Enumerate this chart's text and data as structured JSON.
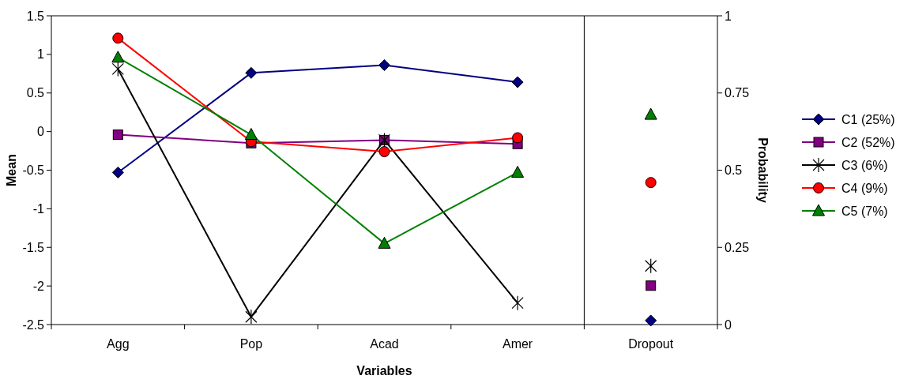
{
  "chart_data": {
    "type": "line",
    "xlabel": "Variables",
    "ylabel": "Mean",
    "y2label": "Probability",
    "categories": [
      "Agg",
      "Pop",
      "Acad",
      "Amer",
      "Dropout"
    ],
    "ylim": [
      -2.5,
      1.5
    ],
    "yticks": [
      -2.5,
      -2,
      -1.5,
      -1,
      -0.5,
      0,
      0.5,
      1,
      1.5
    ],
    "y2lim": [
      0,
      1
    ],
    "y2ticks": [
      0,
      0.25,
      0.5,
      0.75,
      1
    ],
    "legend": "right",
    "grid": false,
    "series": [
      {
        "name": "C1 (25%)",
        "color": "#000080",
        "marker": "diamond",
        "values": [
          -0.53,
          0.76,
          0.86,
          0.64,
          null
        ]
      },
      {
        "name": "C2 (52%)",
        "color": "#800080",
        "marker": "square",
        "values": [
          -0.04,
          -0.15,
          -0.11,
          -0.16,
          null
        ]
      },
      {
        "name": "C3 (6%)",
        "color": "#000000",
        "marker": "cross",
        "values": [
          0.81,
          -2.4,
          -0.11,
          -2.22,
          null
        ]
      },
      {
        "name": "C4 (9%)",
        "color": "#ff0000",
        "marker": "circle",
        "values": [
          1.21,
          -0.13,
          -0.26,
          -0.08,
          null
        ]
      },
      {
        "name": "C5 (7%)",
        "color": "#008000",
        "marker": "triangle",
        "values": [
          0.96,
          -0.04,
          -1.45,
          -0.53,
          null
        ]
      },
      {
        "type": "scatter",
        "axis": "y2",
        "color": "#000080",
        "marker": "diamond",
        "values": [
          null,
          null,
          null,
          null,
          0.013
        ]
      },
      {
        "type": "scatter",
        "axis": "y2",
        "color": "#800080",
        "marker": "square",
        "values": [
          null,
          null,
          null,
          null,
          0.126
        ]
      },
      {
        "type": "scatter",
        "axis": "y2",
        "color": "#000000",
        "marker": "cross",
        "values": [
          null,
          null,
          null,
          null,
          0.19
        ]
      },
      {
        "type": "scatter",
        "axis": "y2",
        "color": "#ff0000",
        "marker": "circle",
        "values": [
          null,
          null,
          null,
          null,
          0.46
        ]
      },
      {
        "type": "scatter",
        "axis": "y2",
        "color": "#008000",
        "marker": "triangle",
        "values": [
          null,
          null,
          null,
          null,
          0.68
        ]
      }
    ]
  }
}
